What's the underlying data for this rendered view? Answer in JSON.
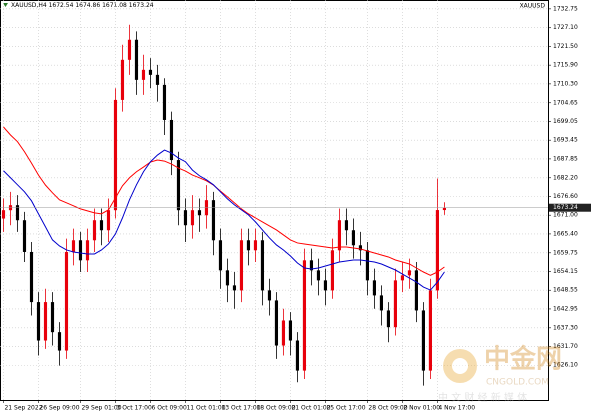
{
  "chart_data": {
    "type": "candlestick",
    "symbol": "XAUUSD,H4",
    "corner_label": "XAUUSD",
    "watermark": {
      "brand": "中金网",
      "site": "CNGOLD.COM",
      "slogan": "中 文 财 经 新 媒 体"
    },
    "up_color": "#e8000b",
    "down_color": "#000000",
    "grid": true,
    "open": [
      1670,
      1672.5,
      1674,
      1669.5,
      1660,
      1645,
      1633.5,
      1645,
      1636,
      1630.5,
      1660,
      1663.5,
      1657.5,
      1663.5,
      1669.5,
      1666.5,
      1672.5,
      1705.5,
      1717.5,
      1723.5,
      1711.5,
      1714.5,
      1713,
      1710,
      1699.5,
      1687.5,
      1672.5,
      1668,
      1672.5,
      1671,
      1675.5,
      1663.5,
      1654.5,
      1650,
      1648.5,
      1663.5,
      1660.5,
      1663.5,
      1648.5,
      1645.5,
      1632,
      1639.5,
      1633.5,
      1624.5,
      1657.5,
      1654.5,
      1651.5,
      1648.5,
      1660.5,
      1669.5,
      1666.5,
      1662,
      1660.5,
      1651.5,
      1647,
      1642.5,
      1637.5,
      1651.5,
      1653,
      1654.5,
      1642.5,
      1624.5,
      1648.5,
      1672.54
    ],
    "high": [
      1676,
      1678,
      1677,
      1672,
      1663,
      1648,
      1649,
      1648,
      1639,
      1664,
      1667,
      1666,
      1667,
      1673,
      1673,
      1676,
      1709,
      1722,
      1728,
      1726,
      1719,
      1718,
      1716,
      1712,
      1702,
      1690,
      1676,
      1677,
      1676,
      1680,
      1678,
      1667,
      1658,
      1654,
      1667,
      1667,
      1667,
      1666,
      1652,
      1648,
      1643,
      1642,
      1636,
      1661,
      1661,
      1658,
      1655,
      1664,
      1673,
      1673,
      1670,
      1666,
      1663,
      1655,
      1650,
      1645,
      1655,
      1657,
      1658,
      1657,
      1645,
      1652,
      1682,
      1674.86
    ],
    "low": [
      1666,
      1668,
      1666,
      1657,
      1641,
      1629,
      1631,
      1632,
      1626,
      1628,
      1656,
      1654,
      1654,
      1660,
      1662,
      1663,
      1670,
      1702,
      1713,
      1707,
      1707,
      1709,
      1705,
      1695,
      1683,
      1668,
      1663,
      1664,
      1666,
      1667,
      1659,
      1649,
      1645,
      1643,
      1645,
      1656,
      1657,
      1644,
      1641,
      1628,
      1629,
      1629,
      1621,
      1622,
      1650,
      1647,
      1644,
      1646,
      1657,
      1662,
      1658,
      1656,
      1647,
      1643,
      1638,
      1633,
      1635,
      1648,
      1649,
      1639,
      1620,
      1622,
      1646,
      1671.08
    ],
    "close": [
      1672.5,
      1674,
      1669.5,
      1660,
      1645,
      1633.5,
      1645,
      1636,
      1630.5,
      1660,
      1663.5,
      1657.5,
      1663.5,
      1669.5,
      1666.5,
      1672.5,
      1705.5,
      1717.5,
      1723.5,
      1711.5,
      1714.5,
      1713,
      1710,
      1699.5,
      1687.5,
      1672.5,
      1668,
      1672.5,
      1671,
      1675.5,
      1663.5,
      1654.5,
      1650,
      1648.5,
      1663.5,
      1660.5,
      1663.5,
      1648.5,
      1645.5,
      1632,
      1639.5,
      1633.5,
      1624.5,
      1657.5,
      1654.5,
      1651.5,
      1648.5,
      1660.5,
      1669.5,
      1666.5,
      1662,
      1660.5,
      1651.5,
      1647,
      1642.5,
      1637.5,
      1651.5,
      1653,
      1654.5,
      1642.5,
      1624.5,
      1648.5,
      1672.54,
      1673.24
    ],
    "ma_lines": [
      {
        "color": "#ff0000",
        "values": [
          1697.4,
          1695,
          1693,
          1690,
          1686.6,
          1683,
          1680,
          1677.7,
          1675.6,
          1674.7,
          1673.8,
          1672.9,
          1672.3,
          1671.7,
          1671.4,
          1672.6,
          1676.2,
          1679.8,
          1682.2,
          1684,
          1685.4,
          1686.9,
          1687.5,
          1687.2,
          1686.3,
          1685.1,
          1684.2,
          1683,
          1682.2,
          1681.3,
          1680,
          1678.2,
          1676.5,
          1674.7,
          1672.9,
          1671.4,
          1670.2,
          1669,
          1667.8,
          1666.6,
          1665.1,
          1663.6,
          1662.7,
          1662.4,
          1662.1,
          1661.8,
          1661.5,
          1661.2,
          1661.5,
          1661.5,
          1661.2,
          1660.9,
          1660.3,
          1659.7,
          1659.1,
          1658.5,
          1657.6,
          1657,
          1656.4,
          1655.2,
          1654,
          1653,
          1654,
          1655.5
        ]
      },
      {
        "color": "#0000cc",
        "values": [
          1684.3,
          1682.2,
          1680.1,
          1678,
          1675.3,
          1671.4,
          1667.5,
          1663.6,
          1661.8,
          1660.6,
          1660,
          1659.7,
          1659.4,
          1659.4,
          1660.6,
          1662.4,
          1665.4,
          1670.2,
          1675.6,
          1680.1,
          1684,
          1687,
          1689,
          1690.5,
          1689.6,
          1688.1,
          1687,
          1684.5,
          1682.8,
          1681.6,
          1680.1,
          1678,
          1675.9,
          1674.1,
          1672.6,
          1671.1,
          1669,
          1666.6,
          1664.2,
          1662.1,
          1660.6,
          1658.8,
          1656.7,
          1655.2,
          1654.9,
          1655.2,
          1655.8,
          1656.4,
          1657,
          1657.3,
          1657.6,
          1657.6,
          1657.3,
          1657,
          1656.4,
          1655.5,
          1654.6,
          1653.4,
          1652.2,
          1651,
          1649.5,
          1648.6,
          1651,
          1654
        ]
      }
    ],
    "xlim": [
      -0.5,
      77.8
    ],
    "xticks": [
      {
        "value": 0,
        "label": "21 Sep 2022"
      },
      {
        "value": 5,
        "label": "26 Sep 09:00"
      },
      {
        "value": 11,
        "label": "29 Sep 01:00"
      },
      {
        "value": 16,
        "label": "3 Oct 17:00"
      },
      {
        "value": 21,
        "label": "6 Oct 09:00"
      },
      {
        "value": 26,
        "label": "11 Oct 01:00"
      },
      {
        "value": 31,
        "label": "13 Oct 17:00"
      },
      {
        "value": 36,
        "label": "18 Oct 09:00"
      },
      {
        "value": 41,
        "label": "21 Oct 01:00"
      },
      {
        "value": 46,
        "label": "25 Oct 17:00"
      },
      {
        "value": 52,
        "label": "28 Oct 09:00"
      },
      {
        "value": 57,
        "label": "2 Nov 01:00"
      },
      {
        "value": 62,
        "label": "4 Nov 17:00"
      }
    ],
    "ylim": [
      1615.7,
      1735.4
    ],
    "yticks": [
      1732.75,
      {
        "value": 1727.1,
        "label": "1727.10"
      },
      {
        "value": 1721.5,
        "label": "1721.50"
      },
      {
        "value": 1715.9,
        "label": "1715.90"
      },
      {
        "value": 1710.3,
        "label": "1710.30"
      },
      1704.65,
      1699.05,
      1693.45,
      1687.85,
      {
        "value": 1682.2,
        "label": "1682.20"
      },
      {
        "value": 1676.6,
        "label": "1676.60"
      },
      {
        "value": 1671,
        "label": "1671.00"
      },
      {
        "value": 1665.4,
        "label": "1665.40"
      },
      1659.75,
      1654.15,
      1648.55,
      1642.95,
      {
        "value": 1637.3,
        "label": "1637.30"
      },
      {
        "value": 1631.7,
        "label": "1631.70"
      },
      {
        "value": 1626.1,
        "label": "1626.10"
      }
    ]
  }
}
